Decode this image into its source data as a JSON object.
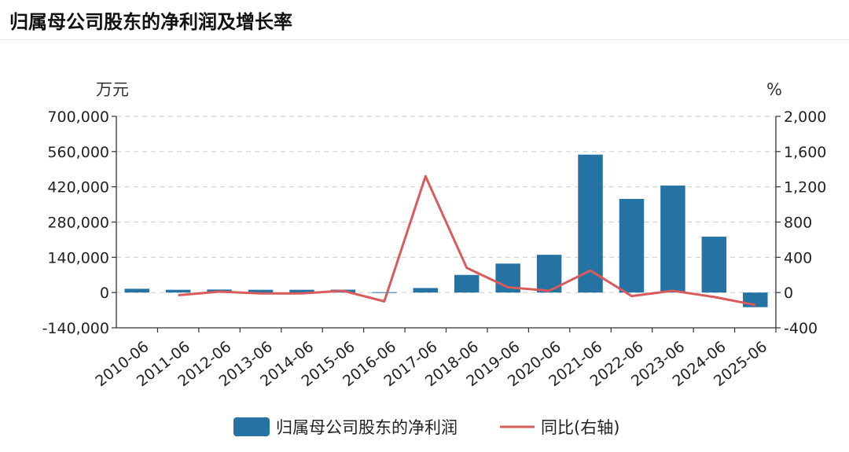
{
  "header": {
    "title": "归属母公司股东的净利润及增长率"
  },
  "chart_data": {
    "type": "bar+line",
    "categories": [
      "2010-06",
      "2011-06",
      "2012-06",
      "2013-06",
      "2014-06",
      "2015-06",
      "2016-06",
      "2017-06",
      "2018-06",
      "2019-06",
      "2020-06",
      "2021-06",
      "2022-06",
      "2023-06",
      "2024-06",
      "2025-06"
    ],
    "left_unit": "万元",
    "right_unit": "%",
    "left_axis": {
      "min": -140000,
      "max": 700000,
      "ticks": [
        700000,
        560000,
        420000,
        280000,
        140000,
        0,
        -140000
      ],
      "tick_labels": [
        "700,000",
        "560,000",
        "420,000",
        "280,000",
        "140,000",
        "0",
        "-140,000"
      ]
    },
    "right_axis": {
      "min": -400,
      "max": 2000,
      "ticks": [
        2000,
        1600,
        1200,
        800,
        400,
        0,
        -400
      ],
      "tick_labels": [
        "2,000",
        "1,600",
        "1,200",
        "800",
        "400",
        "0",
        "-400"
      ]
    },
    "series": [
      {
        "name": "归属母公司股东的净利润",
        "type": "bar",
        "axis": "left",
        "color": "#2473a3",
        "values": [
          15000,
          11000,
          12000,
          11000,
          11000,
          11500,
          1500,
          18000,
          70000,
          115000,
          150000,
          548000,
          372000,
          425000,
          222000,
          -58000
        ]
      },
      {
        "name": "同比(右轴)",
        "type": "line",
        "axis": "right",
        "color": "#d95b5b",
        "values": [
          null,
          -30,
          10,
          -10,
          -10,
          20,
          -100,
          1320,
          280,
          60,
          20,
          250,
          -40,
          20,
          -50,
          -140
        ]
      }
    ],
    "grid": true,
    "legend": "bottom"
  }
}
